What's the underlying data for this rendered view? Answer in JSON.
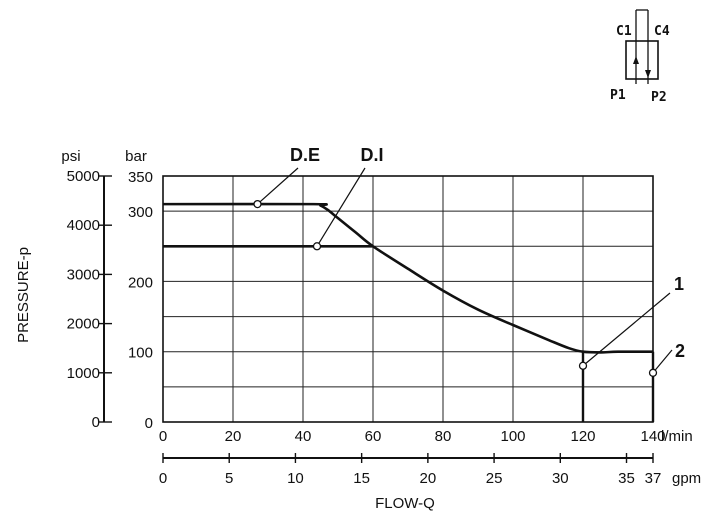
{
  "symbol": {
    "ports": [
      "C1",
      "C4",
      "P1",
      "P2"
    ]
  },
  "chart_data": {
    "type": "line",
    "xlabel": "FLOW-Q",
    "ylabel": "PRESSURE-p",
    "x_unit_primary": "l/min",
    "x_unit_secondary": "gpm",
    "y_unit_left": "psi",
    "y_unit_right": "bar",
    "xlim": [
      0,
      140
    ],
    "ylim": [
      0,
      350
    ],
    "grid": true,
    "x_ticks": [
      "0",
      "20",
      "40",
      "60",
      "80",
      "100",
      "120",
      "140"
    ],
    "x_ticks_values": [
      0,
      20,
      40,
      60,
      80,
      100,
      120,
      140
    ],
    "gpm_ticks": [
      "0",
      "5",
      "10",
      "15",
      "20",
      "25",
      "30",
      "35",
      "37"
    ],
    "gpm_ticks_values": [
      0,
      5,
      10,
      15,
      20,
      25,
      30,
      35,
      37
    ],
    "bar_ticks": [
      "0",
      "100",
      "200",
      "300",
      "350"
    ],
    "bar_ticks_values": [
      0,
      100,
      200,
      300,
      350
    ],
    "psi_ticks": [
      "0",
      "1000",
      "2000",
      "3000",
      "4000",
      "5000"
    ],
    "psi_ticks_values": [
      0,
      1000,
      2000,
      3000,
      4000,
      5000
    ],
    "series": [
      {
        "name": "D.E",
        "x": [
          0,
          43,
          45,
          47,
          50,
          55,
          60,
          70,
          80,
          90,
          100,
          110,
          116,
          120,
          125,
          130,
          140
        ],
        "y": [
          310,
          310,
          308,
          302,
          290,
          270,
          250,
          218,
          187,
          160,
          138,
          117,
          105,
          100,
          99,
          100,
          100
        ]
      },
      {
        "name": "D.I",
        "x": [
          0,
          60
        ],
        "y": [
          250,
          250
        ]
      }
    ],
    "verticals": [
      {
        "name": "1",
        "x": 120,
        "ylim": [
          0,
          100
        ]
      },
      {
        "name": "2",
        "x": 140,
        "ylim": [
          0,
          100
        ]
      }
    ],
    "annotations": [
      {
        "text": "D.E",
        "x": 27,
        "y": 310
      },
      {
        "text": "D.I",
        "x": 44,
        "y": 250
      },
      {
        "text": "1",
        "x": 120,
        "y": 80
      },
      {
        "text": "2",
        "x": 140,
        "y": 70
      }
    ]
  }
}
